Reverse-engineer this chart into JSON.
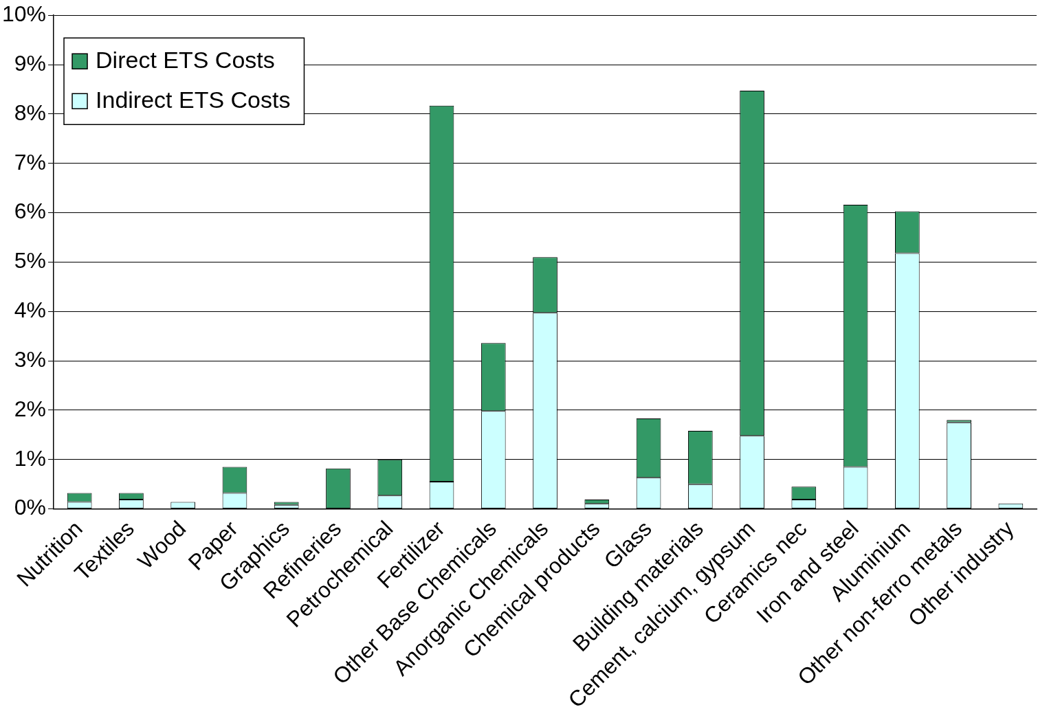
{
  "chart_data": {
    "type": "bar",
    "stacked": true,
    "categories": [
      "Nutrition",
      "Textiles",
      "Wood",
      "Paper",
      "Graphics",
      "Refineries",
      "Petrochemical",
      "Fertilizer",
      "Other Base Chemicals",
      "Anorganic Chemicals",
      "Chemical products",
      "Glass",
      "Building materials",
      "Cement, calcium, gypsum",
      "Ceramics nec",
      "Iron and steel",
      "Aluminium",
      "Other non-ferro metals",
      "Other industry"
    ],
    "series": [
      {
        "name": "Indirect ETS Costs",
        "color": "#ccffff",
        "values": [
          0.14,
          0.19,
          0.14,
          0.32,
          0.08,
          0,
          0.27,
          0.55,
          1.98,
          3.97,
          0.1,
          0.63,
          0.5,
          1.48,
          0.19,
          0.85,
          5.18,
          1.75,
          0.11
        ]
      },
      {
        "name": "Direct ETS Costs",
        "color": "#339966",
        "values": [
          0.18,
          0.13,
          0,
          0.53,
          0.06,
          0.82,
          0.73,
          7.62,
          1.38,
          1.13,
          0.09,
          1.2,
          1.08,
          6.99,
          0.26,
          5.31,
          0.85,
          0.05,
          0
        ]
      }
    ],
    "ylim": [
      0,
      10
    ],
    "yticks": [
      {
        "value": 0,
        "label": "0%"
      },
      {
        "value": 1,
        "label": "1%"
      },
      {
        "value": 2,
        "label": "2%"
      },
      {
        "value": 3,
        "label": "3%"
      },
      {
        "value": 4,
        "label": "4%"
      },
      {
        "value": 5,
        "label": "5%"
      },
      {
        "value": 6,
        "label": "6%"
      },
      {
        "value": 7,
        "label": "7%"
      },
      {
        "value": 8,
        "label": "8%"
      },
      {
        "value": 9,
        "label": "9%"
      },
      {
        "value": 10,
        "label": "10%"
      }
    ],
    "grid": "y",
    "legend": "top left"
  }
}
